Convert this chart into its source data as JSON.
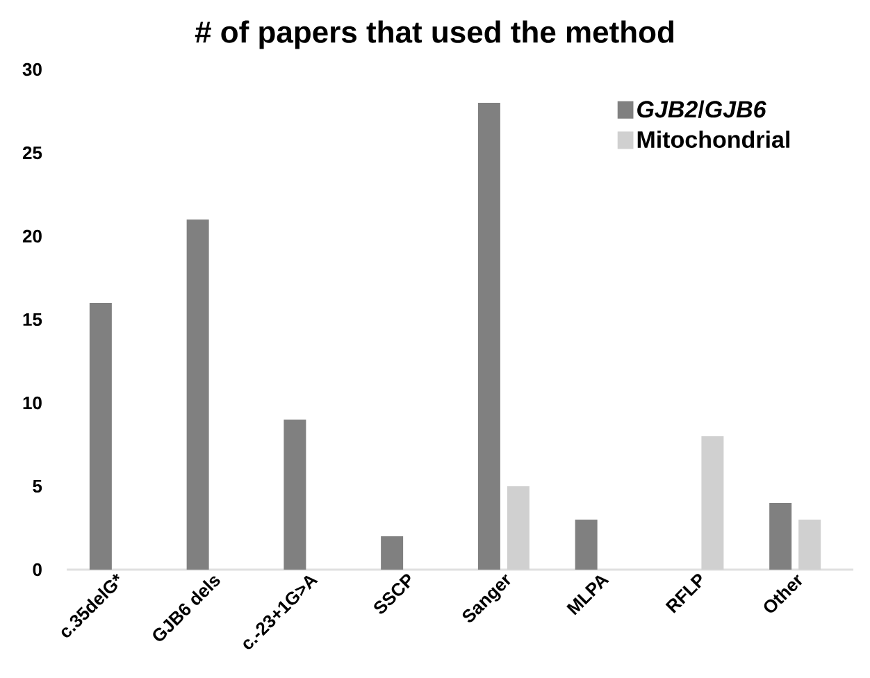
{
  "chart_data": {
    "type": "bar",
    "title": "# of papers that used the method",
    "categories": [
      "c.35delG*",
      "GJB6 dels",
      "c.-23+1G>A",
      "SSCP",
      "Sanger",
      "MLPA",
      "RFLP",
      "Other"
    ],
    "series": [
      {
        "name": "*GJB2*/*GJB6*",
        "color": "#808080",
        "values": [
          16,
          21,
          9,
          2,
          28,
          3,
          0,
          4
        ]
      },
      {
        "name": "Mitochondrial",
        "color": "#d0d0d0",
        "values": [
          0,
          0,
          0,
          0,
          5,
          0,
          8,
          3
        ]
      }
    ],
    "ylim": [
      0,
      30
    ],
    "yticks": [
      0,
      5,
      10,
      15,
      20,
      25,
      30
    ],
    "legend": "top right"
  }
}
